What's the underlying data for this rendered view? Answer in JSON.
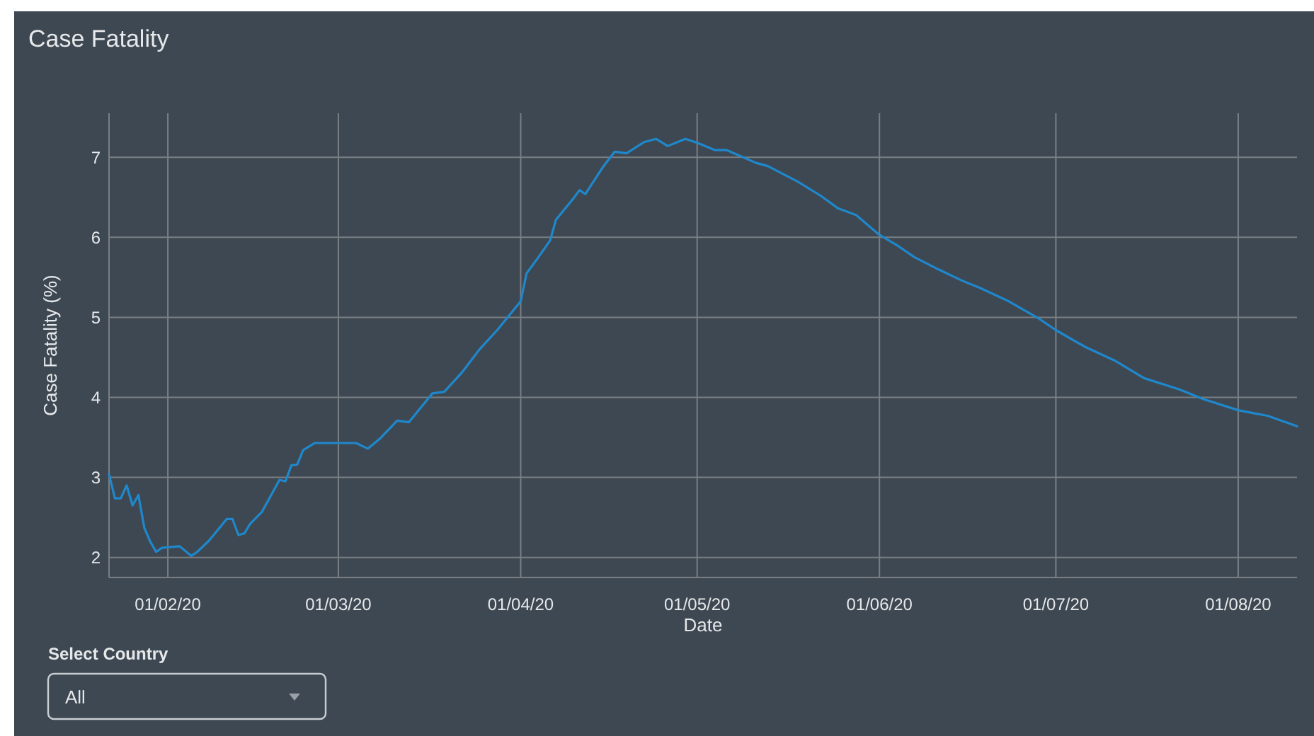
{
  "chart_data": {
    "type": "line",
    "title": "Case Fatality",
    "xlabel": "Date",
    "ylabel": "Case Fatality (%)",
    "annotations": [
      "Select Country",
      "All"
    ],
    "xlim": [
      "2020-01-22",
      "2020-08-11"
    ],
    "ylim": [
      1.75,
      7.55
    ],
    "xticks": [
      {
        "value": "2020-02-01",
        "label": "01/02/20"
      },
      {
        "value": "2020-03-01",
        "label": "01/03/20"
      },
      {
        "value": "2020-04-01",
        "label": "01/04/20"
      },
      {
        "value": "2020-05-01",
        "label": "01/05/20"
      },
      {
        "value": "2020-06-01",
        "label": "01/06/20"
      },
      {
        "value": "2020-07-01",
        "label": "01/07/20"
      },
      {
        "value": "2020-08-01",
        "label": "01/08/20"
      }
    ],
    "yticks": [
      2,
      3,
      4,
      5,
      6,
      7
    ],
    "grid": true,
    "x": [
      "2020-01-22",
      "2020-01-23",
      "2020-01-24",
      "2020-01-25",
      "2020-01-26",
      "2020-01-27",
      "2020-01-28",
      "2020-01-29",
      "2020-01-30",
      "2020-01-31",
      "2020-02-03",
      "2020-02-05",
      "2020-02-06",
      "2020-02-08",
      "2020-02-11",
      "2020-02-12",
      "2020-02-13",
      "2020-02-14",
      "2020-02-15",
      "2020-02-17",
      "2020-02-20",
      "2020-02-21",
      "2020-02-22",
      "2020-02-23",
      "2020-02-24",
      "2020-02-26",
      "2020-03-01",
      "2020-03-04",
      "2020-03-06",
      "2020-03-08",
      "2020-03-11",
      "2020-03-13",
      "2020-03-17",
      "2020-03-19",
      "2020-03-22",
      "2020-03-25",
      "2020-03-28",
      "2020-04-01",
      "2020-04-02",
      "2020-04-04",
      "2020-04-06",
      "2020-04-07",
      "2020-04-10",
      "2020-04-11",
      "2020-04-12",
      "2020-04-15",
      "2020-04-17",
      "2020-04-19",
      "2020-04-22",
      "2020-04-24",
      "2020-04-26",
      "2020-04-29",
      "2020-05-01",
      "2020-05-04",
      "2020-05-06",
      "2020-05-11",
      "2020-05-13",
      "2020-05-18",
      "2020-05-22",
      "2020-05-25",
      "2020-05-28",
      "2020-06-01",
      "2020-06-04",
      "2020-06-07",
      "2020-06-11",
      "2020-06-15",
      "2020-06-18",
      "2020-06-23",
      "2020-06-28",
      "2020-07-01",
      "2020-07-06",
      "2020-07-11",
      "2020-07-16",
      "2020-07-22",
      "2020-07-26",
      "2020-08-01",
      "2020-08-06",
      "2020-08-11"
    ],
    "series": [
      {
        "color": "#1f88cc",
        "values": [
          3.04,
          2.74,
          2.74,
          2.9,
          2.65,
          2.78,
          2.37,
          2.2,
          2.07,
          2.12,
          2.14,
          2.02,
          2.07,
          2.21,
          2.48,
          2.48,
          2.28,
          2.3,
          2.42,
          2.57,
          2.97,
          2.95,
          3.15,
          3.16,
          3.34,
          3.43,
          3.43,
          3.43,
          3.36,
          3.48,
          3.71,
          3.69,
          4.05,
          4.07,
          4.31,
          4.6,
          4.84,
          5.2,
          5.55,
          5.75,
          5.96,
          6.22,
          6.49,
          6.59,
          6.54,
          6.88,
          7.07,
          7.05,
          7.19,
          7.23,
          7.14,
          7.23,
          7.18,
          7.09,
          7.09,
          6.93,
          6.89,
          6.7,
          6.52,
          6.36,
          6.28,
          6.03,
          5.9,
          5.75,
          5.6,
          5.46,
          5.37,
          5.2,
          4.99,
          4.84,
          4.63,
          4.46,
          4.24,
          4.1,
          3.98,
          3.84,
          3.77,
          3.64
        ]
      }
    ]
  }
}
